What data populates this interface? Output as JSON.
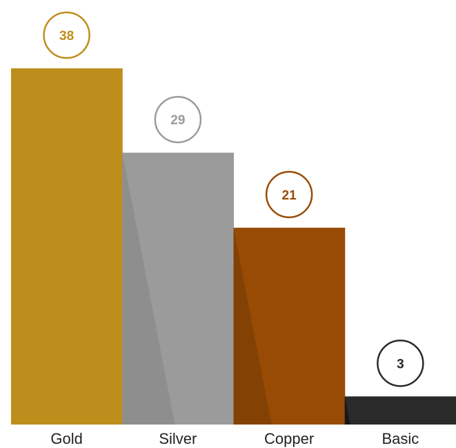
{
  "chart_data": {
    "type": "bar",
    "categories": [
      "Gold",
      "Silver",
      "Copper",
      "Basic"
    ],
    "values": [
      38,
      29,
      21,
      3
    ],
    "value_labels": [
      "38",
      "29",
      "21",
      "3"
    ],
    "colors": [
      "#be8e1c",
      "#9b9b9b",
      "#984b05",
      "#2a2a2a"
    ],
    "label_colors": [
      "#be8e1c",
      "#9b9b9b",
      "#984b05",
      "#2a2a2a"
    ],
    "shadow_colors": [
      "",
      "#8c8c8c",
      "#7f4103",
      "#141414"
    ],
    "title": "",
    "xlabel": "",
    "ylabel": "",
    "ylim": [
      0,
      38
    ],
    "grid": false,
    "legend": "none"
  }
}
